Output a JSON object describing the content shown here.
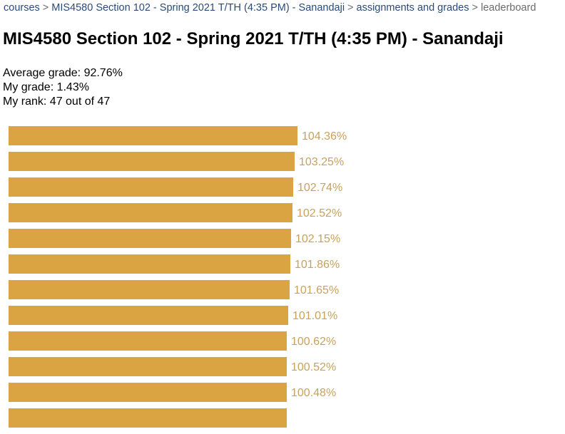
{
  "breadcrumb": {
    "items": [
      {
        "label": "courses"
      },
      {
        "label": "MIS4580 Section 102 - Spring 2021 T/TH (4:35 PM) - Sanandaji"
      },
      {
        "label": "assignments and grades"
      }
    ],
    "separator": ">",
    "current": "leaderboard"
  },
  "page": {
    "title": "MIS4580 Section 102 - Spring 2021 T/TH (4:35 PM) - Sanandaji"
  },
  "stats": {
    "average": "Average grade: 92.76%",
    "my_grade": "My grade: 1.43%",
    "my_rank": "My rank: 47 out of 47"
  },
  "colors": {
    "bar": "#d9a441",
    "value_text": "#c9a15c",
    "link": "#2a4a7a"
  },
  "leaderboard": {
    "max_percent": 104.36,
    "rows": [
      {
        "value": 104.36,
        "label": "104.36%"
      },
      {
        "value": 103.25,
        "label": "103.25%"
      },
      {
        "value": 102.74,
        "label": "102.74%"
      },
      {
        "value": 102.52,
        "label": "102.52%"
      },
      {
        "value": 102.15,
        "label": "102.15%"
      },
      {
        "value": 101.86,
        "label": "101.86%"
      },
      {
        "value": 101.65,
        "label": "101.65%"
      },
      {
        "value": 101.01,
        "label": "101.01%"
      },
      {
        "value": 100.62,
        "label": "100.62%"
      },
      {
        "value": 100.52,
        "label": "100.52%"
      },
      {
        "value": 100.48,
        "label": "100.48%"
      },
      {
        "value": 100.4,
        "label": ""
      }
    ]
  }
}
